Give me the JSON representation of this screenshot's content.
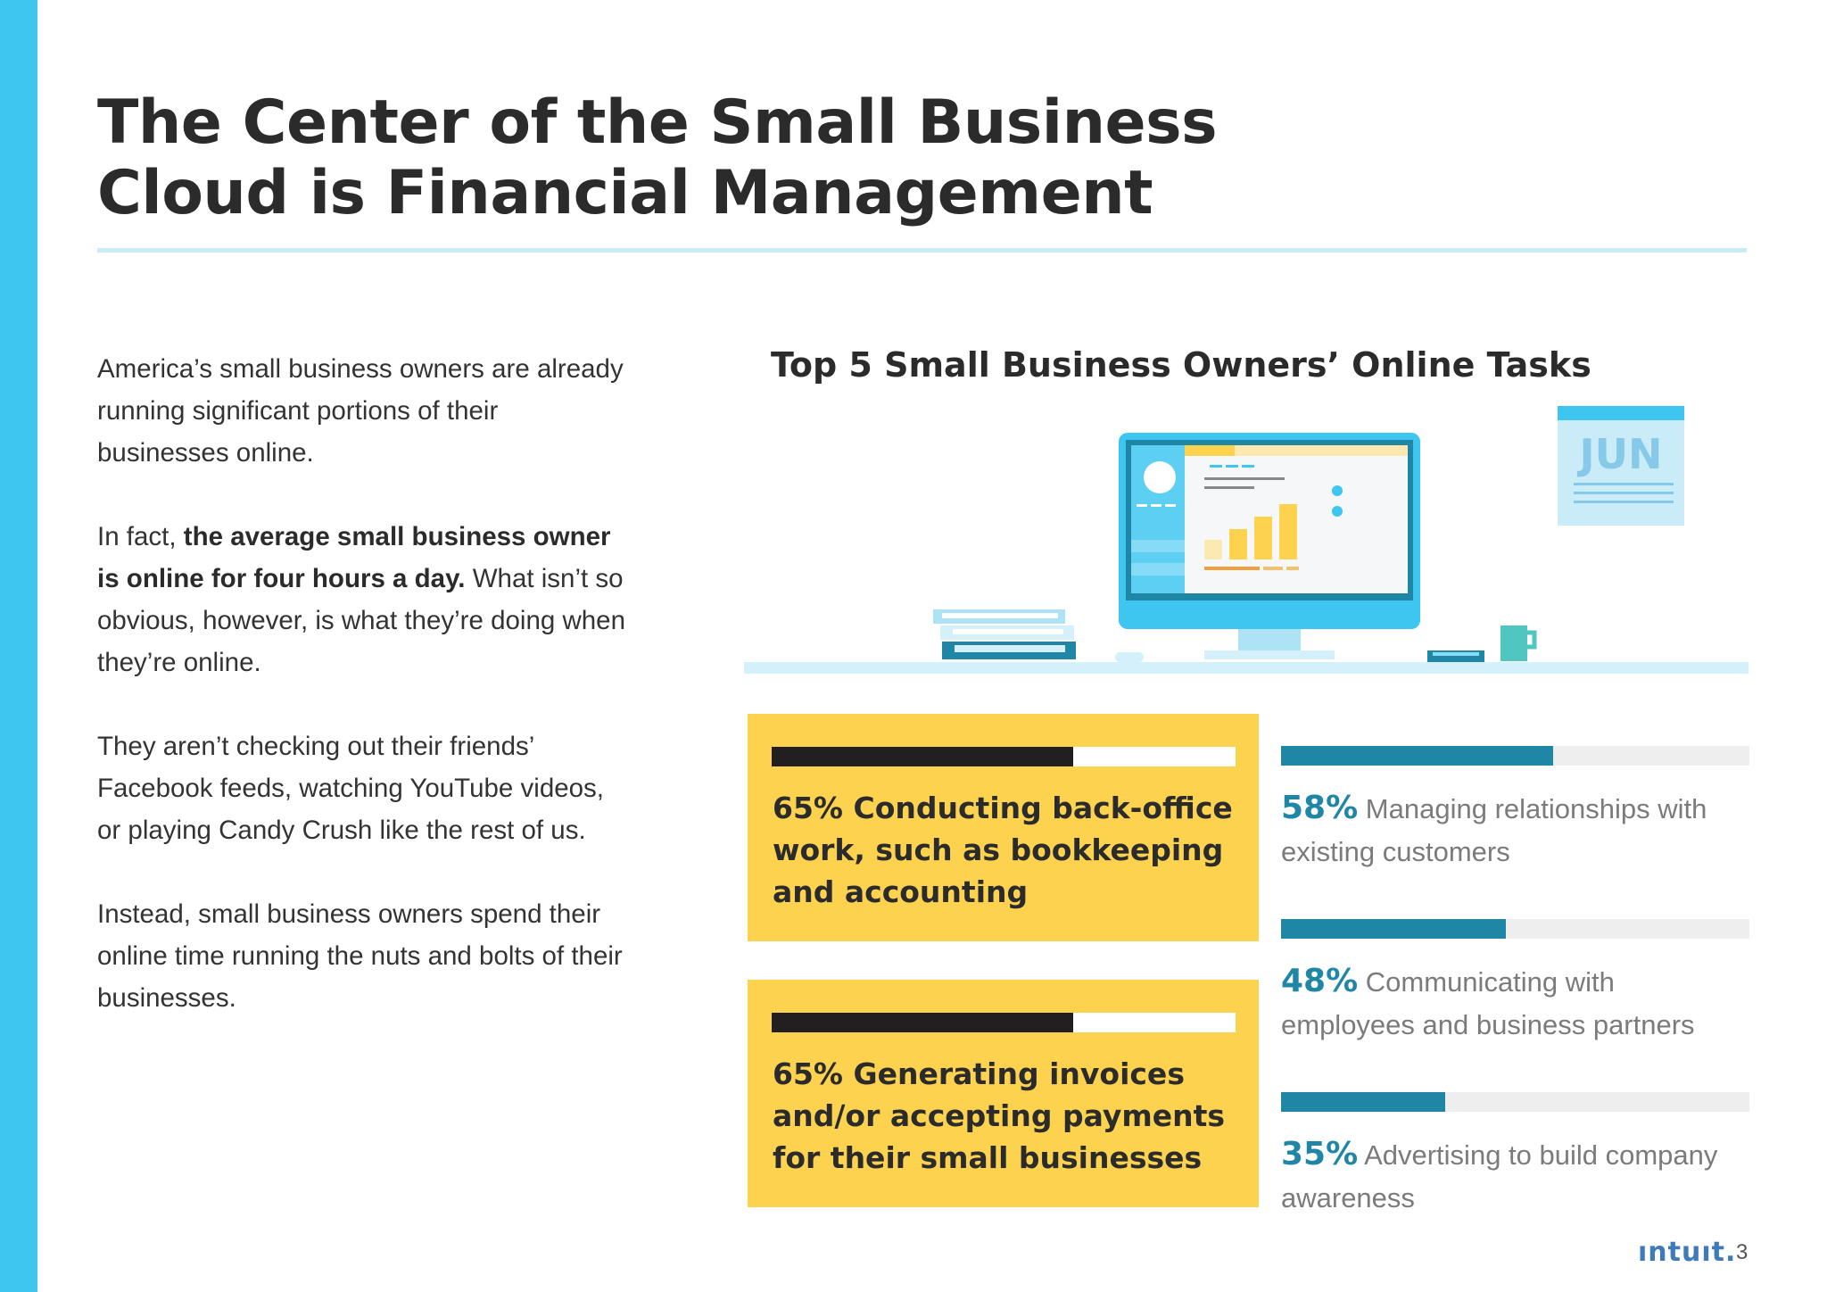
{
  "header": {
    "title_line1": "The Center of the Small Business",
    "title_line2": "Cloud is Financial Management"
  },
  "intro": {
    "p1": "America’s small business owners are already running significant portions of their businesses online.",
    "p2_lead": "In fact, ",
    "p2_bold": "the average small business owner is online for four hours a day.",
    "p2_tail": " What isn’t so obvious, however, is what they’re doing when they’re online.",
    "p3": "They aren’t checking out their friends’ Facebook feeds, watching YouTube videos, or playing Candy Crush like the rest of us.",
    "p4": "Instead, small business owners spend their online time running the nuts and bolts of their businesses."
  },
  "illustration": {
    "calendar_month": "JUN",
    "colors": {
      "screen_frame": "#3ec6f0",
      "bar": "#fdd24f",
      "shelf": "#d4f0fb"
    }
  },
  "chart_data": {
    "type": "bar",
    "title": "Top 5 Small Business Owners’ Online Tasks",
    "unit": "%",
    "items": [
      {
        "value": 65,
        "pct_label": "65%",
        "label": "Conducting back-office work, such as bookkeeping and accounting",
        "style": "highlight"
      },
      {
        "value": 65,
        "pct_label": "65%",
        "label": "Generating invoices and/or accepting payments for their small businesses",
        "style": "highlight"
      },
      {
        "value": 58,
        "pct_label": "58%",
        "label": "Managing relationships with existing customers",
        "style": "normal"
      },
      {
        "value": 48,
        "pct_label": "48%",
        "label": "Communicating with employees and business partners",
        "style": "normal"
      },
      {
        "value": 35,
        "pct_label": "35%",
        "label": "Advertising to build company awareness",
        "style": "normal"
      }
    ],
    "xlim": [
      0,
      100
    ],
    "colors": {
      "highlight_bg": "#fdd24f",
      "highlight_bar": "#231f20",
      "normal_bar": "#1f86a5",
      "track": "#eeeeee"
    }
  },
  "footer": {
    "logo": "ıntuıt.",
    "page_number": "3"
  }
}
